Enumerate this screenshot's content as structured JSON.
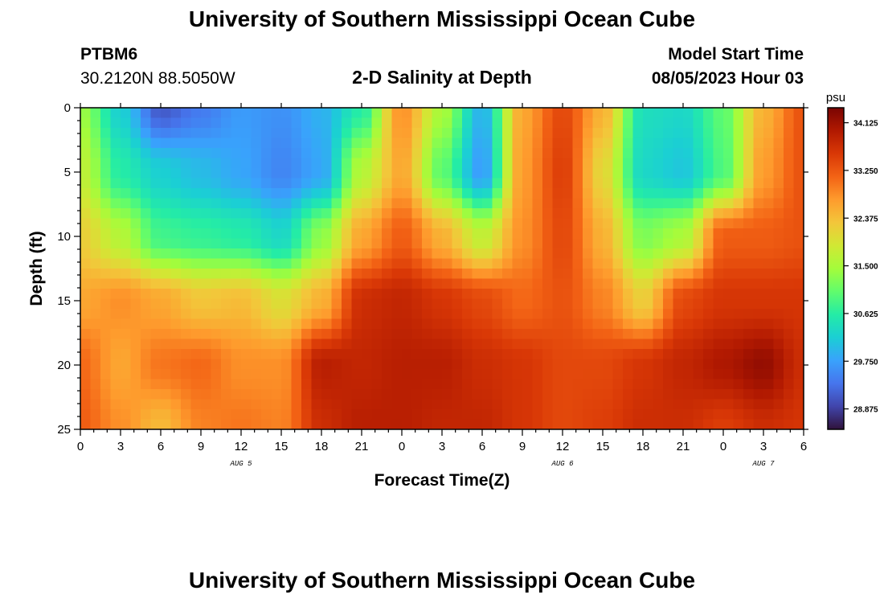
{
  "header": {
    "title": "University of Southern Mississippi Ocean Cube",
    "station": "PTBM6",
    "coords": "30.2120N  88.5050W",
    "subtitle": "2-D Salinity at Depth",
    "start_label": "Model Start Time",
    "start_time": "08/05/2023 Hour 03"
  },
  "footer": {
    "title": "University of Southern Mississippi Ocean Cube"
  },
  "chart_data": {
    "type": "heatmap",
    "title": "2-D Salinity at Depth",
    "xlabel": "Forecast Time(Z)",
    "ylabel": "Depth (ft)",
    "xlim": [
      0,
      54
    ],
    "ylim": [
      0,
      25
    ],
    "x_ticks": [
      0,
      3,
      6,
      9,
      12,
      15,
      18,
      21,
      24,
      27,
      30,
      33,
      36,
      39,
      42,
      45,
      48,
      51,
      54
    ],
    "x_tick_labels": [
      "0",
      "3",
      "6",
      "9",
      "12",
      "15",
      "18",
      "21",
      "0",
      "3",
      "6",
      "9",
      "12",
      "15",
      "18",
      "21",
      "0",
      "3",
      "6"
    ],
    "y_ticks": [
      0,
      5,
      10,
      15,
      20,
      25
    ],
    "y_tick_labels": [
      "0",
      "5",
      "10",
      "15",
      "20",
      "25"
    ],
    "date_labels": [
      {
        "x": 12,
        "label": "AUG 5"
      },
      {
        "x": 36,
        "label": "AUG 6"
      },
      {
        "x": 51,
        "label": "AUG 7"
      }
    ],
    "colorbar": {
      "units": "psu",
      "min": 28.5,
      "max": 34.4,
      "ticks": [
        34.125,
        33.25,
        32.375,
        31.5,
        30.625,
        29.75,
        28.875
      ],
      "tick_labels": [
        "34.125",
        "33.250",
        "32.375",
        "31.500",
        "30.625",
        "29.750",
        "28.875"
      ],
      "colors": [
        "#30123b",
        "#4145ab",
        "#4675ed",
        "#39a2fc",
        "#1bcfd4",
        "#24eca6",
        "#61fc6c",
        "#a4fc3b",
        "#d1e834",
        "#f3c63a",
        "#fe9b2d",
        "#f36315",
        "#d93806",
        "#b11901",
        "#7a0402"
      ]
    },
    "grid": false,
    "depths": [
      0,
      5,
      10,
      15,
      20,
      25
    ],
    "times": [
      0,
      3,
      6,
      9,
      12,
      15,
      18,
      21,
      24,
      27,
      30,
      33,
      36,
      39,
      42,
      45,
      48,
      51,
      54
    ],
    "salinity": [
      [
        31.4,
        30.2,
        29.1,
        29.4,
        29.7,
        29.6,
        29.9,
        30.6,
        32.8,
        31.5,
        29.9,
        32.6,
        33.4,
        32.5,
        30.4,
        30.3,
        31.0,
        32.5,
        33.3
      ],
      [
        31.7,
        30.6,
        30.2,
        30.0,
        29.8,
        29.5,
        29.8,
        31.6,
        32.6,
        31.0,
        29.7,
        32.7,
        33.5,
        32.1,
        30.3,
        30.1,
        30.9,
        32.7,
        33.3
      ],
      [
        32.2,
        31.6,
        30.8,
        30.7,
        30.6,
        30.3,
        31.3,
        32.6,
        33.2,
        32.5,
        31.7,
        32.8,
        33.4,
        32.5,
        31.2,
        31.5,
        33.2,
        33.2,
        33.3
      ],
      [
        32.6,
        32.8,
        32.6,
        32.3,
        32.4,
        32.0,
        32.5,
        33.7,
        33.8,
        33.6,
        33.4,
        33.1,
        33.3,
        32.9,
        32.2,
        33.4,
        33.6,
        33.6,
        33.6
      ],
      [
        33.1,
        32.6,
        33.0,
        33.1,
        32.8,
        32.8,
        33.9,
        33.8,
        33.9,
        33.9,
        33.7,
        33.6,
        33.4,
        33.4,
        33.6,
        33.8,
        34.0,
        34.2,
        33.7
      ],
      [
        33.2,
        32.8,
        32.4,
        32.9,
        33.0,
        32.9,
        33.7,
        33.9,
        33.9,
        33.8,
        33.8,
        33.6,
        33.4,
        33.5,
        33.7,
        33.7,
        33.5,
        33.7,
        33.6
      ]
    ]
  }
}
